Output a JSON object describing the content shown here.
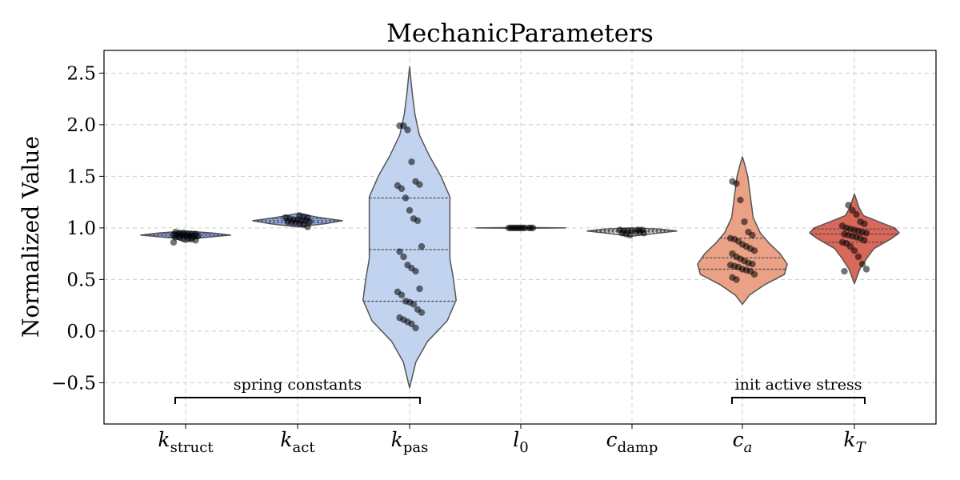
{
  "chart_data": {
    "type": "violin",
    "title": "MechanicParameters",
    "ylabel": "Normalized Value",
    "xlabel": "",
    "ylim": [
      -0.9,
      2.72
    ],
    "yticks": [
      -0.5,
      0.0,
      0.5,
      1.0,
      1.5,
      2.0,
      2.5
    ],
    "ytick_labels": [
      "−0.5",
      "0.0",
      "0.5",
      "1.0",
      "1.5",
      "2.0",
      "2.5"
    ],
    "grid": true,
    "categories": [
      {
        "main": "k",
        "sub": "struct",
        "italic_sub": false
      },
      {
        "main": "k",
        "sub": "act",
        "italic_sub": false
      },
      {
        "main": "k",
        "sub": "pas",
        "italic_sub": false
      },
      {
        "main": "l",
        "sub": "0",
        "italic_sub": false
      },
      {
        "main": "c",
        "sub": "damp",
        "italic_sub": false
      },
      {
        "main": "c",
        "sub": "a",
        "italic_sub": true
      },
      {
        "main": "k",
        "sub": "T",
        "italic_sub": true
      }
    ],
    "colors": [
      "#7b93d6",
      "#8fa6e0",
      "#c2d3f0",
      "#e0e0e0",
      "#e6e6e6",
      "#eaa186",
      "#d8685a"
    ],
    "violins": [
      {
        "profile": [
          [
            0.86,
            0
          ],
          [
            0.9,
            0.12
          ],
          [
            0.93,
            0.5
          ],
          [
            0.95,
            0.3
          ],
          [
            0.97,
            0
          ]
        ],
        "quartiles": [
          0.91,
          0.93,
          0.95
        ],
        "points": [
          0.86,
          0.88,
          0.89,
          0.9,
          0.9,
          0.91,
          0.91,
          0.92,
          0.92,
          0.92,
          0.93,
          0.93,
          0.93,
          0.93,
          0.94,
          0.94,
          0.94,
          0.95,
          0.95,
          0.96
        ]
      },
      {
        "profile": [
          [
            1.01,
            0
          ],
          [
            1.04,
            0.3
          ],
          [
            1.07,
            0.5
          ],
          [
            1.1,
            0.25
          ],
          [
            1.14,
            0
          ]
        ],
        "quartiles": [
          1.05,
          1.07,
          1.09
        ],
        "points": [
          1.01,
          1.03,
          1.04,
          1.05,
          1.05,
          1.06,
          1.06,
          1.07,
          1.07,
          1.08,
          1.08,
          1.09,
          1.1,
          1.1,
          1.11,
          1.12
        ]
      },
      {
        "profile": [
          [
            -0.55,
            0
          ],
          [
            -0.3,
            0.07
          ],
          [
            -0.1,
            0.2
          ],
          [
            0.1,
            0.42
          ],
          [
            0.3,
            0.52
          ],
          [
            0.5,
            0.49
          ],
          [
            0.7,
            0.45
          ],
          [
            0.9,
            0.45
          ],
          [
            1.1,
            0.45
          ],
          [
            1.3,
            0.45
          ],
          [
            1.5,
            0.35
          ],
          [
            1.7,
            0.22
          ],
          [
            1.9,
            0.11
          ],
          [
            2.1,
            0.06
          ],
          [
            2.3,
            0.03
          ],
          [
            2.56,
            0
          ]
        ],
        "quartiles": [
          0.29,
          0.79,
          1.29
        ],
        "points": [
          0.03,
          0.07,
          0.09,
          0.11,
          0.13,
          0.18,
          0.21,
          0.26,
          0.28,
          0.29,
          0.35,
          0.38,
          0.41,
          0.58,
          0.61,
          0.64,
          0.72,
          0.77,
          0.82,
          1.07,
          1.09,
          1.17,
          1.29,
          1.38,
          1.41,
          1.42,
          1.45,
          1.64,
          1.95,
          1.99,
          1.99
        ]
      },
      {
        "profile": [
          [
            0.995,
            0
          ],
          [
            1.0,
            0.5
          ],
          [
            1.005,
            0
          ]
        ],
        "quartiles": [],
        "points": [
          1.0,
          1.0,
          1.0,
          1.0,
          1.0,
          1.0,
          1.0,
          1.0,
          1.0,
          1.0,
          1.0,
          1.0
        ]
      },
      {
        "profile": [
          [
            0.92,
            0
          ],
          [
            0.95,
            0.3
          ],
          [
            0.97,
            0.5
          ],
          [
            0.99,
            0.3
          ],
          [
            1.0,
            0
          ]
        ],
        "quartiles": [
          0.96,
          0.97,
          0.98
        ],
        "points": [
          0.93,
          0.94,
          0.95,
          0.95,
          0.96,
          0.96,
          0.97,
          0.97,
          0.97,
          0.98,
          0.98,
          0.98
        ]
      },
      {
        "profile": [
          [
            0.26,
            0
          ],
          [
            0.35,
            0.08
          ],
          [
            0.45,
            0.25
          ],
          [
            0.55,
            0.47
          ],
          [
            0.65,
            0.5
          ],
          [
            0.75,
            0.42
          ],
          [
            0.85,
            0.3
          ],
          [
            0.95,
            0.2
          ],
          [
            1.1,
            0.12
          ],
          [
            1.3,
            0.09
          ],
          [
            1.5,
            0.06
          ],
          [
            1.6,
            0.03
          ],
          [
            1.69,
            0
          ]
        ],
        "quartiles": [
          0.6,
          0.71,
          0.9
        ],
        "points": [
          0.5,
          0.52,
          0.55,
          0.58,
          0.59,
          0.6,
          0.62,
          0.63,
          0.64,
          0.65,
          0.66,
          0.68,
          0.7,
          0.72,
          0.75,
          0.78,
          0.8,
          0.82,
          0.84,
          0.87,
          0.89,
          0.9,
          0.93,
          0.96,
          1.06,
          1.27,
          1.43,
          1.45
        ]
      },
      {
        "profile": [
          [
            0.46,
            0
          ],
          [
            0.6,
            0.06
          ],
          [
            0.72,
            0.15
          ],
          [
            0.8,
            0.22
          ],
          [
            0.9,
            0.42
          ],
          [
            0.95,
            0.5
          ],
          [
            1.0,
            0.45
          ],
          [
            1.05,
            0.3
          ],
          [
            1.12,
            0.1
          ],
          [
            1.2,
            0.05
          ],
          [
            1.33,
            0
          ]
        ],
        "quartiles": [
          0.86,
          0.94,
          0.99
        ],
        "points": [
          0.58,
          0.6,
          0.65,
          0.72,
          0.78,
          0.82,
          0.85,
          0.86,
          0.88,
          0.9,
          0.91,
          0.92,
          0.93,
          0.94,
          0.95,
          0.96,
          0.97,
          0.98,
          0.99,
          1.0,
          1.02,
          1.04,
          1.06,
          1.13,
          1.17,
          1.22
        ]
      }
    ],
    "brackets": [
      {
        "label": "spring constants",
        "from": 0,
        "to": 2
      },
      {
        "label": "init active stress",
        "from": 5,
        "to": 6
      }
    ]
  }
}
